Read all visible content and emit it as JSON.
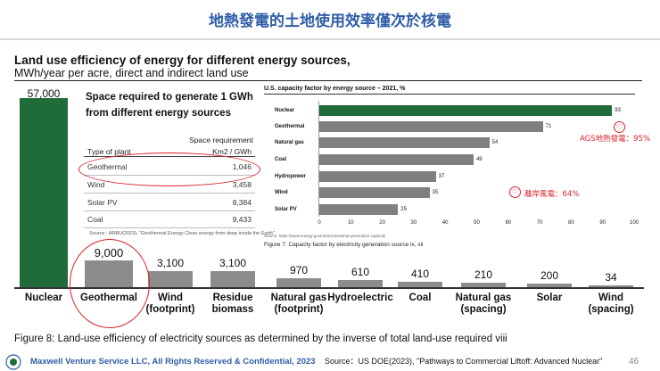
{
  "slide": {
    "title": "地熱發電的土地使用效率僅次於核電",
    "heading": "Land use efficiency of energy for different energy sources,",
    "subheading": "MWh/year per acre, direct and indirect land use"
  },
  "colors": {
    "accent": "#2e5ca8",
    "green": "#1f6b3a",
    "gray": "#8c8c8c",
    "red": "#d9232a"
  },
  "chart_data": [
    {
      "type": "bar",
      "title": "Land use efficiency of energy for different energy sources",
      "ylabel": "MWh/year per acre",
      "categories": [
        "Nuclear",
        "Geothermal",
        "Wind\n(footprint)",
        "Residue\nbiomass",
        "Natural gas\n(footprint)",
        "Hydroelectric",
        "Coal",
        "Natural gas\n(spacing)",
        "Solar",
        "Wind\n(spacing)"
      ],
      "values": [
        57000,
        9000,
        3100,
        3100,
        970,
        610,
        410,
        210,
        200,
        34
      ],
      "value_labels": [
        "57,000",
        "9,000",
        "3,100",
        "3,100",
        "970",
        "610",
        "410",
        "210",
        "200",
        "34"
      ],
      "ylim": [
        0,
        57000
      ],
      "caption": "Figure 8: Land-use efficiency of electricity sources as determined by the inverse of total land-use required viii"
    },
    {
      "type": "bar",
      "orientation": "horizontal",
      "title": "U.S. capacity factor by energy source – 2021, %",
      "categories": [
        "Nuclear",
        "Geothermal",
        "Natural gas",
        "Coal",
        "Hydropower",
        "Wind",
        "Solar PV"
      ],
      "values": [
        93,
        71,
        54,
        49,
        37,
        35,
        25
      ],
      "xticks": [
        "0",
        "10",
        "20",
        "30",
        "40",
        "50",
        "60",
        "70",
        "80",
        "90",
        "100"
      ],
      "xlim": [
        0,
        100
      ],
      "source": "Source: https://www.energy.gov/ne/articles/what-generation-capacity",
      "caption": "Figure 7: Capacity factor by electricity generation source ix, xii"
    },
    {
      "type": "table",
      "title": "Space required to generate 1 GWh from different energy sources",
      "header_top": "Space requirement",
      "columns": [
        "Type of plant",
        "Km2 / GWh"
      ],
      "rows": [
        [
          "Geothermal",
          "1,046"
        ],
        [
          "Wind",
          "3,458"
        ],
        [
          "Solar PV",
          "8,384"
        ],
        [
          "Coal",
          "9,433"
        ]
      ],
      "source": "Source : ARBU(2023), \"Geothermal Energy Clean energy from deep inside the Earth\""
    }
  ],
  "annotations": {
    "ags": "AGS地熱發電：95%",
    "wind": "離岸風電：64%",
    "heart": "♡"
  },
  "footer": {
    "company": "Maxwell Venture Service LLC, All Rights Reserved & Confidential, 2023",
    "source": "Source：US DOE(2023), \"Pathways to Commercial Liftoff: Advanced Nuclear\"",
    "page": "46"
  }
}
